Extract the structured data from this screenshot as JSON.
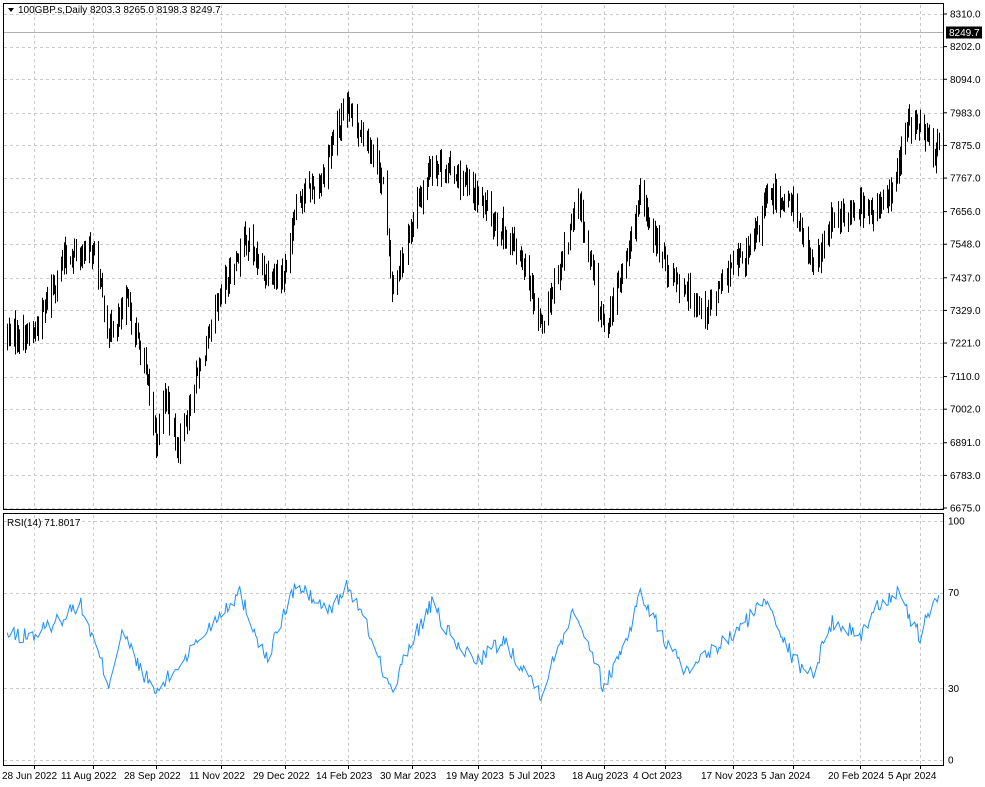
{
  "header": {
    "symbol": "100GBP.s,Daily",
    "ohlc": "8203.3 8265.0 8198.3 8249.7"
  },
  "price_tag": "8249.7",
  "rsi_header": {
    "label": "RSI(14) 71.8017"
  },
  "colors": {
    "background": "#ffffff",
    "bars": "#000000",
    "grid": "#c8c8c8",
    "rsi_line": "#1e90ff",
    "tag_bg": "#000000",
    "tag_text": "#ffffff"
  },
  "chart_data": [
    {
      "type": "ohlc",
      "title": "100GBP.s,Daily",
      "grid": true,
      "y_ticks": [
        "8310.0",
        "8202.0",
        "8094.0",
        "7983.0",
        "7875.0",
        "7767.0",
        "7656.0",
        "7548.0",
        "7437.0",
        "7329.0",
        "7221.0",
        "7110.0",
        "7002.0",
        "6891.0",
        "6783.0",
        "6675.0"
      ],
      "ylim": [
        6675.0,
        8310.0
      ],
      "x_ticks": [
        "28 Jun 2022",
        "11 Aug 2022",
        "28 Sep 2022",
        "11 Nov 2022",
        "29 Dec 2022",
        "14 Feb 2023",
        "30 Mar 2023",
        "19 May 2023",
        "5 Jul 2023",
        "18 Aug 2023",
        "4 Oct 2023",
        "17 Nov 2023",
        "5 Jan 2024",
        "20 Feb 2024",
        "5 Apr 2024"
      ],
      "last_price": 8249.7,
      "close_path": [
        [
          "28 Jun 2022",
          7250
        ],
        [
          "20 Jul 2022",
          7500
        ],
        [
          "11 Aug 2022",
          7530
        ],
        [
          "23 Aug 2022",
          7250
        ],
        [
          "6 Sep 2022",
          7350
        ],
        [
          "19 Sep 2022",
          7150
        ],
        [
          "28 Sep 2022",
          6900
        ],
        [
          "4 Oct 2022",
          7050
        ],
        [
          "12 Oct 2022",
          6870
        ],
        [
          "25 Oct 2022",
          7100
        ],
        [
          "11 Nov 2022",
          7380
        ],
        [
          "29 Nov 2022",
          7570
        ],
        [
          "12 Dec 2022",
          7460
        ],
        [
          "29 Dec 2022",
          7450
        ],
        [
          "6 Jan 2023",
          7700
        ],
        [
          "24 Jan 2023",
          7750
        ],
        [
          "3 Feb 2023",
          7900
        ],
        [
          "14 Feb 2023",
          7990
        ],
        [
          "28 Feb 2023",
          7890
        ],
        [
          "10 Mar 2023",
          7750
        ],
        [
          "16 Mar 2023",
          7400
        ],
        [
          "30 Mar 2023",
          7620
        ],
        [
          "14 Apr 2023",
          7820
        ],
        [
          "2 May 2023",
          7780
        ],
        [
          "19 May 2023",
          7700
        ],
        [
          "1 Jun 2023",
          7620
        ],
        [
          "23 Jun 2023",
          7480
        ],
        [
          "5 Jul 2023",
          7280
        ],
        [
          "31 Jul 2023",
          7680
        ],
        [
          "18 Aug 2023",
          7260
        ],
        [
          "1 Sep 2023",
          7450
        ],
        [
          "15 Sep 2023",
          7700
        ],
        [
          "4 Oct 2023",
          7480
        ],
        [
          "20 Oct 2023",
          7380
        ],
        [
          "31 Oct 2023",
          7330
        ],
        [
          "17 Nov 2023",
          7480
        ],
        [
          "1 Dec 2023",
          7520
        ],
        [
          "15 Dec 2023",
          7710
        ],
        [
          "5 Jan 2024",
          7680
        ],
        [
          "18 Jan 2024",
          7460
        ],
        [
          "1 Feb 2024",
          7620
        ],
        [
          "20 Feb 2024",
          7680
        ],
        [
          "1 Mar 2024",
          7640
        ],
        [
          "15 Mar 2024",
          7720
        ],
        [
          "27 Mar 2024",
          7950
        ],
        [
          "5 Apr 2024",
          7930
        ],
        [
          "17 Apr 2024",
          7850
        ],
        [
          "30 Apr 2024",
          8249.7
        ]
      ]
    },
    {
      "type": "line",
      "title": "RSI(14) 71.8017",
      "ylim": [
        0,
        100
      ],
      "y_ticks": [
        100,
        70,
        30,
        0
      ],
      "series": [
        {
          "name": "RSI(14)",
          "path": [
            [
              "28 Jun 2022",
              52
            ],
            [
              "20 Jul 2022",
              60
            ],
            [
              "1 Aug 2022",
              66
            ],
            [
              "23 Aug 2022",
              32
            ],
            [
              "2 Sep 2022",
              54
            ],
            [
              "14 Sep 2022",
              40
            ],
            [
              "28 Sep 2022",
              28
            ],
            [
              "14 Oct 2022",
              40
            ],
            [
              "11 Nov 2022",
              62
            ],
            [
              "25 Nov 2022",
              70
            ],
            [
              "15 Dec 2022",
              42
            ],
            [
              "29 Dec 2022",
              62
            ],
            [
              "6 Jan 2023",
              73
            ],
            [
              "31 Jan 2023",
              62
            ],
            [
              "14 Feb 2023",
              73
            ],
            [
              "3 Mar 2023",
              50
            ],
            [
              "16 Mar 2023",
              28
            ],
            [
              "30 Mar 2023",
              50
            ],
            [
              "14 Apr 2023",
              65
            ],
            [
              "2 May 2023",
              48
            ],
            [
              "19 May 2023",
              42
            ],
            [
              "7 Jun 2023",
              50
            ],
            [
              "23 Jun 2023",
              38
            ],
            [
              "5 Jul 2023",
              28
            ],
            [
              "28 Jul 2023",
              64
            ],
            [
              "10 Aug 2023",
              45
            ],
            [
              "18 Aug 2023",
              30
            ],
            [
              "5 Sep 2023",
              52
            ],
            [
              "15 Sep 2023",
              70
            ],
            [
              "4 Oct 2023",
              50
            ],
            [
              "20 Oct 2023",
              35
            ],
            [
              "31 Oct 2023",
              44
            ],
            [
              "17 Nov 2023",
              52
            ],
            [
              "1 Dec 2023",
              60
            ],
            [
              "15 Dec 2023",
              68
            ],
            [
              "5 Jan 2024",
              42
            ],
            [
              "18 Jan 2024",
              36
            ],
            [
              "1 Feb 2024",
              58
            ],
            [
              "20 Feb 2024",
              52
            ],
            [
              "5 Mar 2024",
              65
            ],
            [
              "18 Mar 2024",
              70
            ],
            [
              "5 Apr 2024",
              52
            ],
            [
              "17 Apr 2024",
              68
            ],
            [
              "30 Apr 2024",
              71.8
            ]
          ]
        }
      ]
    }
  ]
}
